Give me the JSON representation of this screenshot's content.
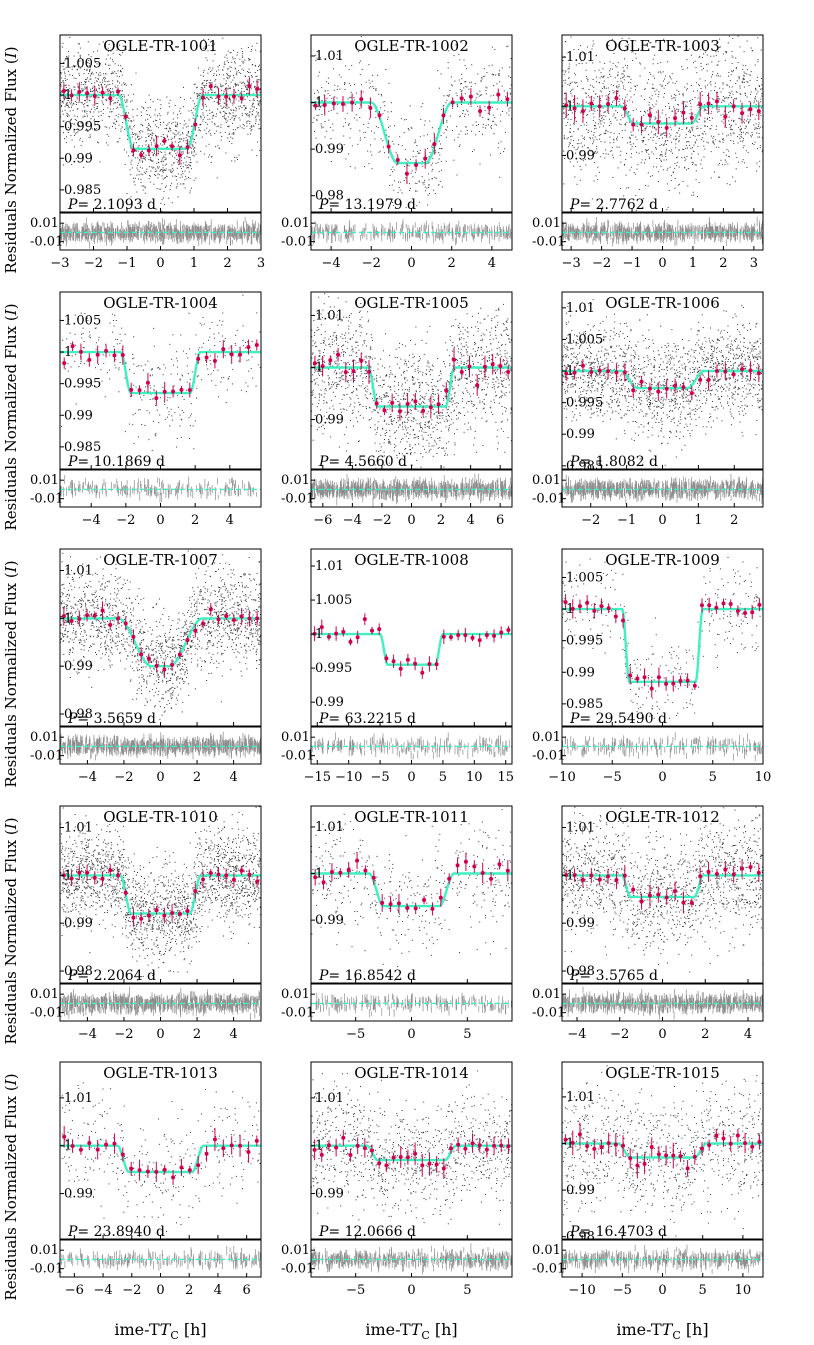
{
  "figure": {
    "ylabel_prefix": "Normalized Flux",
    "ylabel_band": "I",
    "residuals_label": "Residuals",
    "xlabel_main": "Time-T",
    "xlabel_sub": "C",
    "xlabel_unit": "[h]",
    "period_symbol": "P",
    "period_unit": "d"
  },
  "colors": {
    "data_points": "#333333",
    "binned": "#d1004f",
    "model": "#3ff0c0",
    "residuals": "#8c8c8c"
  },
  "chart_data": [
    {
      "type": "scatter",
      "title": "OGLE-TR-1001",
      "period": "2.1093",
      "xlim": [
        -3,
        3
      ],
      "xticks": [
        -3,
        -2,
        -1,
        0,
        1,
        2,
        3
      ],
      "ylim": [
        0.9815,
        1.0095
      ],
      "yticks": [
        0.985,
        0.99,
        0.995,
        1,
        1.005
      ],
      "ytick_labels": [
        "0.985",
        "0.99",
        "0.995",
        "1",
        "1.005"
      ],
      "depth": 0.0085,
      "t1": 1.25,
      "t2": 0.8,
      "noise": 0.004,
      "density": 1700,
      "rlim": [
        -0.019,
        0.021
      ],
      "rticks": [
        0.01,
        -0.01
      ],
      "rnoise": 0.004,
      "bins": 26
    },
    {
      "type": "scatter",
      "title": "OGLE-TR-1002",
      "period": "13.1979",
      "xlim": [
        -5,
        5
      ],
      "xticks": [
        -4,
        -2,
        0,
        2,
        4
      ],
      "ylim": [
        0.9765,
        1.0145
      ],
      "yticks": [
        0.98,
        0.99,
        1,
        1.01
      ],
      "ytick_labels": [
        "0.98",
        "0.99",
        "1",
        "1.01"
      ],
      "depth": 0.013,
      "t1": 2.0,
      "t2": 0.7,
      "noise": 0.006,
      "density": 600,
      "rlim": [
        -0.019,
        0.021
      ],
      "rticks": [
        0.01,
        -0.01
      ],
      "rnoise": 0.004,
      "bins": 22
    },
    {
      "type": "scatter",
      "title": "OGLE-TR-1003",
      "period": "2.7762",
      "xlim": [
        -3.3,
        3.3
      ],
      "xticks": [
        -3,
        -2,
        -1,
        0,
        1,
        2,
        3
      ],
      "ylim": [
        0.9785,
        1.0145
      ],
      "yticks": [
        0.99,
        1,
        1.01
      ],
      "ytick_labels": [
        "0.99",
        "1",
        "1.01"
      ],
      "depth": 0.0035,
      "t1": 1.35,
      "t2": 0.95,
      "noise": 0.007,
      "density": 1400,
      "rlim": [
        -0.019,
        0.021
      ],
      "rticks": [
        0.01,
        -0.01
      ],
      "rnoise": 0.004,
      "bins": 24
    },
    {
      "type": "scatter",
      "title": "OGLE-TR-1004",
      "period": "10.1869",
      "xlim": [
        -5.8,
        5.8
      ],
      "xticks": [
        -4,
        -2,
        0,
        2,
        4
      ],
      "ylim": [
        0.9815,
        1.0095
      ],
      "yticks": [
        0.985,
        0.99,
        0.995,
        1,
        1.005
      ],
      "ytick_labels": [
        "0.985",
        "0.99",
        "0.995",
        "1",
        "1.005"
      ],
      "depth": 0.0065,
      "t1": 2.3,
      "t2": 1.7,
      "noise": 0.004,
      "density": 350,
      "rlim": [
        -0.019,
        0.021
      ],
      "rticks": [
        0.01,
        -0.01
      ],
      "rnoise": 0.004,
      "bins": 24
    },
    {
      "type": "scatter",
      "title": "OGLE-TR-1005",
      "period": "4.5660",
      "xlim": [
        -6.8,
        6.8
      ],
      "xticks": [
        -6,
        -4,
        -2,
        0,
        2,
        4,
        6
      ],
      "ylim": [
        0.9805,
        1.0145
      ],
      "yticks": [
        0.99,
        1,
        1.01
      ],
      "ytick_labels": [
        "0.99",
        "1",
        "1.01"
      ],
      "depth": 0.0075,
      "t1": 2.9,
      "t2": 2.3,
      "noise": 0.006,
      "density": 1600,
      "rlim": [
        -0.019,
        0.021
      ],
      "rticks": [
        0.01,
        -0.01
      ],
      "rnoise": 0.004,
      "bins": 26
    },
    {
      "type": "scatter",
      "title": "OGLE-TR-1006",
      "period": "1.8082",
      "xlim": [
        -2.8,
        2.8
      ],
      "xticks": [
        -2,
        -1,
        0,
        1,
        2
      ],
      "ylim": [
        0.9845,
        1.0125
      ],
      "yticks": [
        0.985,
        0.99,
        0.995,
        1,
        1.005,
        1.01
      ],
      "ytick_labels": [
        "0.985",
        "0.99",
        "0.995",
        "1",
        "1.005",
        "1.01"
      ],
      "depth": 0.0027,
      "t1": 1.15,
      "t2": 0.7,
      "noise": 0.004,
      "density": 1700,
      "rlim": [
        -0.019,
        0.021
      ],
      "rticks": [
        0.01,
        -0.01
      ],
      "rnoise": 0.004,
      "bins": 24
    },
    {
      "type": "scatter",
      "title": "OGLE-TR-1007",
      "period": "3.5659",
      "xlim": [
        -5.5,
        5.5
      ],
      "xticks": [
        -4,
        -2,
        0,
        2,
        4
      ],
      "ylim": [
        0.9775,
        1.0145
      ],
      "yticks": [
        0.98,
        0.99,
        1,
        1.01
      ],
      "ytick_labels": [
        "0.98",
        "0.99",
        "1",
        "1.01"
      ],
      "depth": 0.01,
      "t1": 2.3,
      "t2": 0.5,
      "noise": 0.005,
      "density": 1700,
      "rlim": [
        -0.019,
        0.021
      ],
      "rticks": [
        0.01,
        -0.01
      ],
      "rnoise": 0.004,
      "bins": 26
    },
    {
      "type": "scatter",
      "title": "OGLE-TR-1008",
      "period": "63.2215",
      "xlim": [
        -16,
        16
      ],
      "xticks": [
        -15,
        -10,
        -5,
        0,
        5,
        10,
        15
      ],
      "ylim": [
        0.9865,
        1.0125
      ],
      "yticks": [
        0.99,
        0.995,
        1,
        1.005,
        1.01
      ],
      "ytick_labels": [
        "0.99",
        "0.995",
        "1",
        "1.005",
        "1.01"
      ],
      "depth": 0.0045,
      "t1": 5.0,
      "t2": 3.8,
      "noise": 0.003,
      "density": 0,
      "rlim": [
        -0.019,
        0.021
      ],
      "rticks": [
        0.01,
        -0.01
      ],
      "rnoise": 0.004,
      "bins": 28
    },
    {
      "type": "scatter",
      "title": "OGLE-TR-1009",
      "period": "29.5490",
      "xlim": [
        -10,
        10
      ],
      "xticks": [
        -10,
        -5,
        0,
        5,
        10
      ],
      "ylim": [
        0.9815,
        1.0095
      ],
      "yticks": [
        0.985,
        0.99,
        0.995,
        1,
        1.005
      ],
      "ytick_labels": [
        "0.985",
        "0.99",
        "0.995",
        "1",
        "1.005"
      ],
      "depth": 0.0115,
      "t1": 4.0,
      "t2": 3.3,
      "noise": 0.004,
      "density": 350,
      "rlim": [
        -0.019,
        0.021
      ],
      "rticks": [
        0.01,
        -0.01
      ],
      "rnoise": 0.004,
      "bins": 28
    },
    {
      "type": "scatter",
      "title": "OGLE-TR-1010",
      "period": "2.2064",
      "xlim": [
        -5.5,
        5.5
      ],
      "xticks": [
        -4,
        -2,
        0,
        2,
        4
      ],
      "ylim": [
        0.9775,
        1.0145
      ],
      "yticks": [
        0.98,
        0.99,
        1,
        1.01
      ],
      "ytick_labels": [
        "0.98",
        "0.99",
        "1",
        "1.01"
      ],
      "depth": 0.008,
      "t1": 2.2,
      "t2": 1.6,
      "noise": 0.005,
      "density": 2000,
      "rlim": [
        -0.019,
        0.021
      ],
      "rticks": [
        0.01,
        -0.01
      ],
      "rnoise": 0.004,
      "bins": 26
    },
    {
      "type": "scatter",
      "title": "OGLE-TR-1011",
      "period": "16.8542",
      "xlim": [
        -9,
        9
      ],
      "xticks": [
        -5,
        0,
        5
      ],
      "ylim": [
        0.9765,
        1.0145
      ],
      "yticks": [
        0.99,
        1,
        1.01
      ],
      "ytick_labels": [
        "0.99",
        "1",
        "1.01"
      ],
      "depth": 0.007,
      "t1": 3.8,
      "t2": 2.5,
      "noise": 0.006,
      "density": 450,
      "rlim": [
        -0.019,
        0.021
      ],
      "rticks": [
        0.01,
        -0.01
      ],
      "rnoise": 0.004,
      "bins": 24
    },
    {
      "type": "scatter",
      "title": "OGLE-TR-1012",
      "period": "3.5765",
      "xlim": [
        -4.7,
        4.7
      ],
      "xticks": [
        -4,
        -2,
        0,
        2,
        4
      ],
      "ylim": [
        0.9775,
        1.0145
      ],
      "yticks": [
        0.98,
        0.99,
        1,
        1.01
      ],
      "ytick_labels": [
        "0.98",
        "0.99",
        "1",
        "1.01"
      ],
      "depth": 0.0045,
      "t1": 1.9,
      "t2": 1.5,
      "noise": 0.006,
      "density": 1500,
      "rlim": [
        -0.019,
        0.021
      ],
      "rticks": [
        0.01,
        -0.01
      ],
      "rnoise": 0.004,
      "bins": 24
    },
    {
      "type": "scatter",
      "title": "OGLE-TR-1013",
      "period": "23.8940",
      "xlim": [
        -7,
        7
      ],
      "xticks": [
        -6,
        -4,
        -2,
        0,
        2,
        4,
        6
      ],
      "ylim": [
        0.9805,
        1.0175
      ],
      "yticks": [
        0.99,
        1,
        1.01
      ],
      "ytick_labels": [
        "0.99",
        "1",
        "1.01"
      ],
      "depth": 0.0055,
      "t1": 3.0,
      "t2": 2.2,
      "noise": 0.006,
      "density": 350,
      "rlim": [
        -0.019,
        0.021
      ],
      "rticks": [
        0.01,
        -0.01
      ],
      "rnoise": 0.004,
      "bins": 24
    },
    {
      "type": "scatter",
      "title": "OGLE-TR-1014",
      "period": "12.0666",
      "xlim": [
        -9,
        9
      ],
      "xticks": [
        -5,
        0,
        5
      ],
      "ylim": [
        0.9805,
        1.0175
      ],
      "yticks": [
        0.99,
        1,
        1.01
      ],
      "ytick_labels": [
        "0.99",
        "1",
        "1.01"
      ],
      "depth": 0.003,
      "t1": 4.0,
      "t2": 3.0,
      "noise": 0.006,
      "density": 1000,
      "rlim": [
        -0.019,
        0.021
      ],
      "rticks": [
        0.01,
        -0.01
      ],
      "rnoise": 0.004,
      "bins": 28
    },
    {
      "type": "scatter",
      "title": "OGLE-TR-1015",
      "period": "16.4703",
      "xlim": [
        -12.5,
        12.5
      ],
      "xticks": [
        -10,
        -5,
        0,
        5,
        10
      ],
      "ylim": [
        0.9795,
        1.0175
      ],
      "yticks": [
        0.98,
        0.99,
        1,
        1.01
      ],
      "ytick_labels": [
        "0.98",
        "0.99",
        "1",
        "1.01"
      ],
      "depth": 0.003,
      "t1": 5.5,
      "t2": 4.0,
      "noise": 0.007,
      "density": 900,
      "rlim": [
        -0.019,
        0.021
      ],
      "rticks": [
        0.01,
        -0.01
      ],
      "rnoise": 0.004,
      "bins": 28
    }
  ]
}
